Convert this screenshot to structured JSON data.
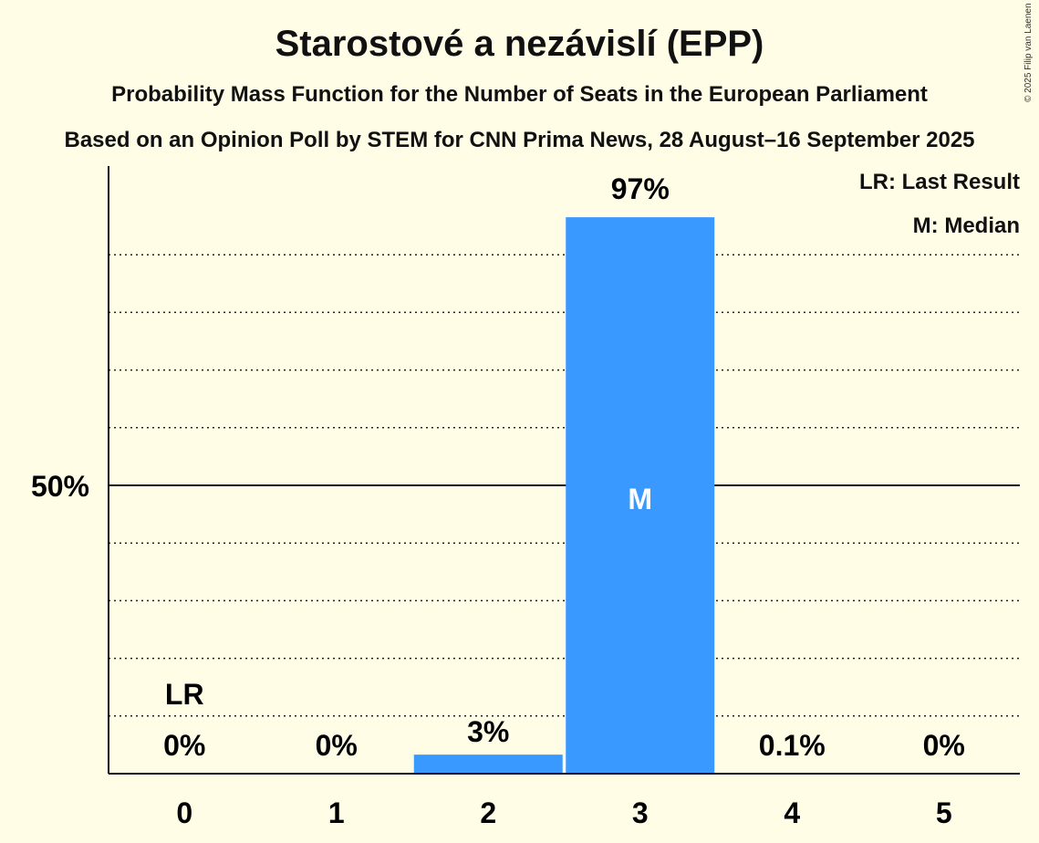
{
  "title": "Starostové a nezávislí (EPP)",
  "subtitle1": "Probability Mass Function for the Number of Seats in the European Parliament",
  "subtitle2": "Based on an Opinion Poll by STEM for CNN Prima News, 28 August–16 September 2025",
  "copyright": "© 2025 Filip van Laenen",
  "legend": {
    "lr": "LR: Last Result",
    "m": "M: Median"
  },
  "colors": {
    "bar": "#3a99ff",
    "background": "#fffde6"
  },
  "chart_data": {
    "type": "bar",
    "categories": [
      "0",
      "1",
      "2",
      "3",
      "4",
      "5"
    ],
    "values": [
      0,
      0,
      3.3,
      96.5,
      0.1,
      0
    ],
    "labels": [
      "0%",
      "0%",
      "3%",
      "97%",
      "0.1%",
      "0%"
    ],
    "ylim": [
      0,
      100
    ],
    "ytick_label": "50%",
    "ytick_value": 50,
    "gridlines_every": 10,
    "last_result_index": 0,
    "last_result_label": "LR",
    "median_index": 3,
    "median_label": "M"
  }
}
